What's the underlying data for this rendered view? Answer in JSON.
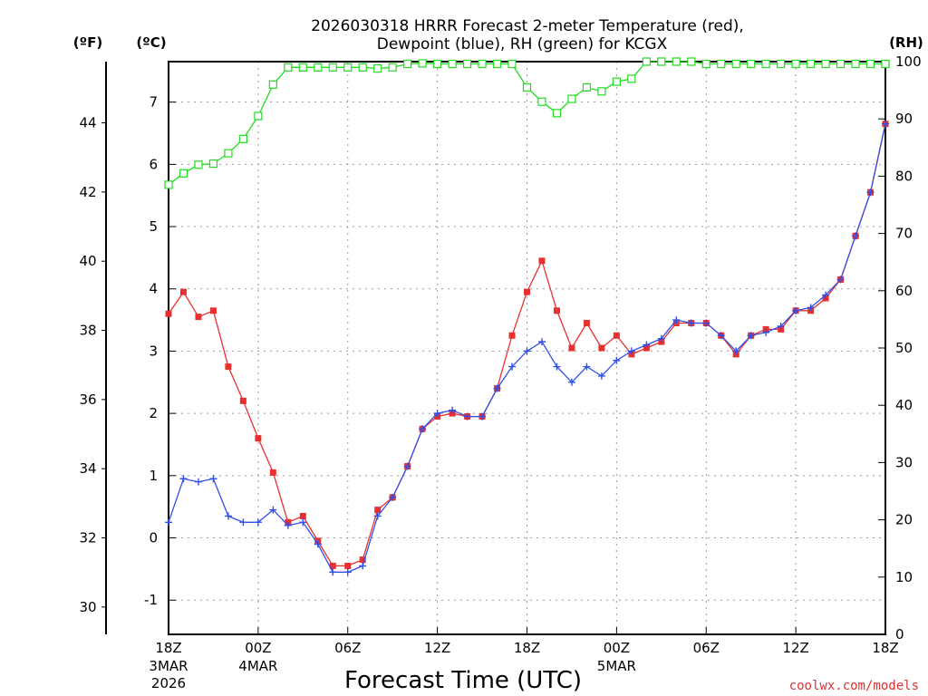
{
  "chart_data": {
    "type": "line",
    "title_line1": "2026030318 HRRR Forecast 2-meter Temperature (red),",
    "title_line2": "Dewpoint (blue), RH (green) for KCGX",
    "xlabel": "Forecast Time (UTC)",
    "credit": "coolwx.com/models",
    "units": {
      "fahrenheit": "(ºF)",
      "celsius": "(ºC)",
      "rh": "(RH)"
    },
    "x_range_hours": [
      0,
      48
    ],
    "ylim_celsius": [
      -1.55,
      7.65
    ],
    "ylim_rh": [
      0,
      100
    ],
    "grid": true,
    "y_ticks_celsius": [
      "-1",
      "0",
      "1",
      "2",
      "3",
      "4",
      "5",
      "6",
      "7"
    ],
    "y_ticks_fahrenheit": [
      "30",
      "32",
      "34",
      "36",
      "38",
      "40",
      "42",
      "44"
    ],
    "y_ticks_rh": [
      "0",
      "10",
      "20",
      "30",
      "40",
      "50",
      "60",
      "70",
      "80",
      "90",
      "100"
    ],
    "x_ticks": [
      {
        "hour": 0,
        "label": "18Z",
        "sub1": "3MAR",
        "sub2": "2026"
      },
      {
        "hour": 6,
        "label": "00Z",
        "sub1": "4MAR",
        "sub2": ""
      },
      {
        "hour": 12,
        "label": "06Z",
        "sub1": "",
        "sub2": ""
      },
      {
        "hour": 18,
        "label": "12Z",
        "sub1": "",
        "sub2": ""
      },
      {
        "hour": 24,
        "label": "18Z",
        "sub1": "",
        "sub2": ""
      },
      {
        "hour": 30,
        "label": "00Z",
        "sub1": "5MAR",
        "sub2": ""
      },
      {
        "hour": 36,
        "label": "06Z",
        "sub1": "",
        "sub2": ""
      },
      {
        "hour": 42,
        "label": "12Z",
        "sub1": "",
        "sub2": ""
      },
      {
        "hour": 48,
        "label": "18Z",
        "sub1": "",
        "sub2": ""
      }
    ],
    "series": [
      {
        "name": "Temperature",
        "unit": "C",
        "color": "#e83030",
        "marker": "filled-square",
        "values": [
          3.6,
          3.95,
          3.55,
          3.65,
          2.75,
          2.2,
          1.6,
          1.05,
          0.25,
          0.35,
          -0.05,
          -0.45,
          -0.45,
          -0.35,
          0.45,
          0.65,
          1.15,
          1.75,
          1.95,
          2.0,
          1.95,
          1.95,
          2.4,
          3.25,
          3.95,
          4.45,
          3.65,
          3.05,
          3.45,
          3.05,
          3.25,
          2.95,
          3.05,
          3.15,
          3.45,
          3.45,
          3.45,
          3.25,
          2.95,
          3.25,
          3.35,
          3.35,
          3.65,
          3.65,
          3.85,
          4.15,
          4.85,
          5.55,
          6.65
        ]
      },
      {
        "name": "Dewpoint",
        "unit": "C",
        "color": "#3050e8",
        "marker": "plus",
        "values": [
          0.25,
          0.95,
          0.9,
          0.95,
          0.35,
          0.25,
          0.25,
          0.45,
          0.2,
          0.25,
          -0.1,
          -0.55,
          -0.55,
          -0.45,
          0.35,
          0.65,
          1.15,
          1.75,
          2.0,
          2.05,
          1.95,
          1.95,
          2.4,
          2.75,
          3.0,
          3.15,
          2.75,
          2.5,
          2.75,
          2.6,
          2.85,
          3.0,
          3.1,
          3.2,
          3.5,
          3.45,
          3.45,
          3.25,
          3.0,
          3.25,
          3.3,
          3.4,
          3.65,
          3.7,
          3.9,
          4.15,
          4.85,
          5.55,
          6.65
        ]
      },
      {
        "name": "RH",
        "unit": "%",
        "color": "#20dd20",
        "marker": "open-square",
        "values": [
          78.5,
          80.5,
          82,
          82.2,
          84,
          86.5,
          90.5,
          96,
          99,
          99,
          99,
          99,
          99,
          99,
          98.8,
          99,
          99.6,
          99.7,
          99.6,
          99.6,
          99.6,
          99.6,
          99.6,
          99.6,
          95.5,
          93,
          91,
          93.5,
          95.5,
          94.8,
          96.5,
          97,
          100,
          100,
          100,
          100,
          99.6,
          99.6,
          99.6,
          99.6,
          99.6,
          99.6,
          99.6,
          99.6,
          99.6,
          99.6,
          99.6,
          99.6,
          99.6
        ]
      }
    ]
  }
}
